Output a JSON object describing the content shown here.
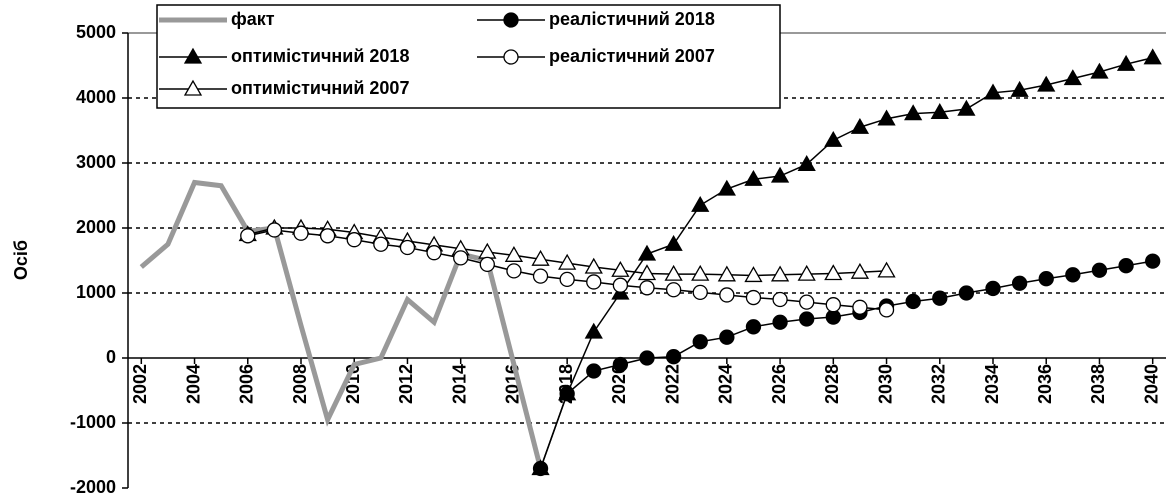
{
  "chart_data": {
    "type": "line",
    "y_label": "Осіб",
    "xlim": [
      2001.5,
      2040.5
    ],
    "xticks": [
      2002,
      2004,
      2006,
      2008,
      2010,
      2012,
      2014,
      2016,
      2018,
      2020,
      2022,
      2024,
      2026,
      2028,
      2030,
      2032,
      2034,
      2036,
      2038,
      2040
    ],
    "ylim": [
      -2000,
      5000
    ],
    "yticks": [
      -2000,
      -1000,
      0,
      1000,
      2000,
      3000,
      4000,
      5000
    ],
    "grid": true,
    "legend": "top-left",
    "series": [
      {
        "name": "факт",
        "color": "#999999",
        "marker": "none",
        "x": [
          2002,
          2003,
          2004,
          2005,
          2006,
          2007,
          2008,
          2009,
          2010,
          2011,
          2012,
          2013,
          2014,
          2015,
          2016,
          2017
        ],
        "values": [
          1400,
          1750,
          2700,
          2650,
          1950,
          2000,
          500,
          -950,
          -100,
          0,
          900,
          550,
          1600,
          1500,
          -100,
          -1700
        ]
      },
      {
        "name": "оптимістичний 2018",
        "color": "#000000",
        "marker": "triangle-filled",
        "x": [
          2017,
          2018,
          2019,
          2020,
          2021,
          2022,
          2023,
          2024,
          2025,
          2026,
          2027,
          2028,
          2029,
          2030,
          2031,
          2032,
          2033,
          2034,
          2035,
          2036,
          2037,
          2038,
          2039,
          2040
        ],
        "values": [
          -1700,
          -550,
          400,
          1000,
          1600,
          1750,
          2350,
          2600,
          2750,
          2800,
          2980,
          3350,
          3550,
          3680,
          3760,
          3780,
          3830,
          4080,
          4120,
          4200,
          4300,
          4400,
          4520,
          4620
        ]
      },
      {
        "name": "реалістичний 2018",
        "color": "#000000",
        "marker": "circle-filled",
        "x": [
          2017,
          2018,
          2019,
          2020,
          2021,
          2022,
          2023,
          2024,
          2025,
          2026,
          2027,
          2028,
          2029,
          2030,
          2031,
          2032,
          2033,
          2034,
          2035,
          2036,
          2037,
          2038,
          2039,
          2040
        ],
        "values": [
          -1700,
          -550,
          -200,
          -100,
          0,
          20,
          250,
          320,
          480,
          550,
          600,
          630,
          700,
          800,
          870,
          920,
          1000,
          1070,
          1150,
          1220,
          1280,
          1350,
          1420,
          1490
        ]
      },
      {
        "name": "оптимістичний 2007",
        "color": "#000000",
        "marker": "triangle-open",
        "x": [
          2006,
          2007,
          2008,
          2009,
          2010,
          2011,
          2012,
          2013,
          2014,
          2015,
          2016,
          2017,
          2018,
          2019,
          2020,
          2021,
          2022,
          2023,
          2024,
          2025,
          2026,
          2027,
          2028,
          2029,
          2030
        ],
        "values": [
          1900,
          2000,
          2000,
          1980,
          1930,
          1860,
          1800,
          1740,
          1680,
          1630,
          1580,
          1520,
          1460,
          1400,
          1350,
          1300,
          1290,
          1290,
          1280,
          1270,
          1280,
          1290,
          1300,
          1320,
          1340
        ]
      },
      {
        "name": "реалістичний 2007",
        "color": "#000000",
        "marker": "circle-open",
        "x": [
          2006,
          2007,
          2008,
          2009,
          2010,
          2011,
          2012,
          2013,
          2014,
          2015,
          2016,
          2017,
          2018,
          2019,
          2020,
          2021,
          2022,
          2023,
          2024,
          2025,
          2026,
          2027,
          2028,
          2029,
          2030
        ],
        "values": [
          1880,
          1970,
          1920,
          1880,
          1820,
          1750,
          1700,
          1620,
          1540,
          1440,
          1340,
          1260,
          1210,
          1170,
          1120,
          1080,
          1050,
          1010,
          970,
          930,
          900,
          860,
          820,
          780,
          740
        ]
      }
    ]
  }
}
